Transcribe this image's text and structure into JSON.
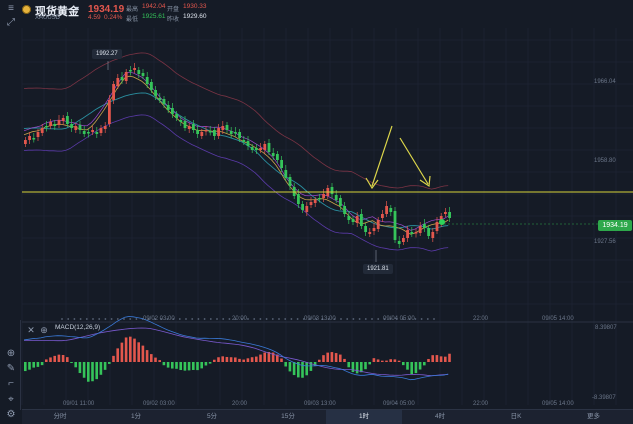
{
  "header": {
    "name": "现货黄金",
    "symbol": "XAUUSD",
    "price": "1934.19",
    "change": "4.59",
    "change_pct": "0.24%",
    "high_label": "最高",
    "high": "1942.04",
    "open_label": "开盘",
    "open": "1930.33",
    "low_label": "最低",
    "low": "1925.61",
    "prev_label": "昨收",
    "prev": "1929.60"
  },
  "chart": {
    "annotations": {
      "high_tag": "1992.27",
      "low_tag": "1921.81"
    },
    "price_axis": [
      "1966.04",
      "1958.80",
      "1927.56"
    ],
    "current_price": "1934.19",
    "time_axis": {
      "upper": [
        "09/02 03:00",
        "20:00",
        "09/03 13:00",
        "09/04 05:00",
        "22:00",
        "09/05 14:00"
      ],
      "lower": [
        "09/01 11:00",
        "09/02 03:00",
        "20:00",
        "09/03 13:00",
        "09/04 05:00",
        "22:00",
        "09/05 14:00"
      ]
    },
    "colors": {
      "up": "#e3574d",
      "down": "#35c45a",
      "hline": "#d6d33a",
      "arrow": "#dcd64a"
    }
  },
  "macd": {
    "title": "MACD(12,26,9)",
    "axis_top": "8.39807",
    "axis_bottom": "-8.39807"
  },
  "timeframes": [
    "分时",
    "1分",
    "5分",
    "15分",
    "1时",
    "4时",
    "日K",
    "更多"
  ],
  "active_timeframe": "1时",
  "icons": [
    "crosshair-icon",
    "pencil-icon",
    "ruler-icon",
    "measure-icon",
    "settings-icon"
  ]
}
